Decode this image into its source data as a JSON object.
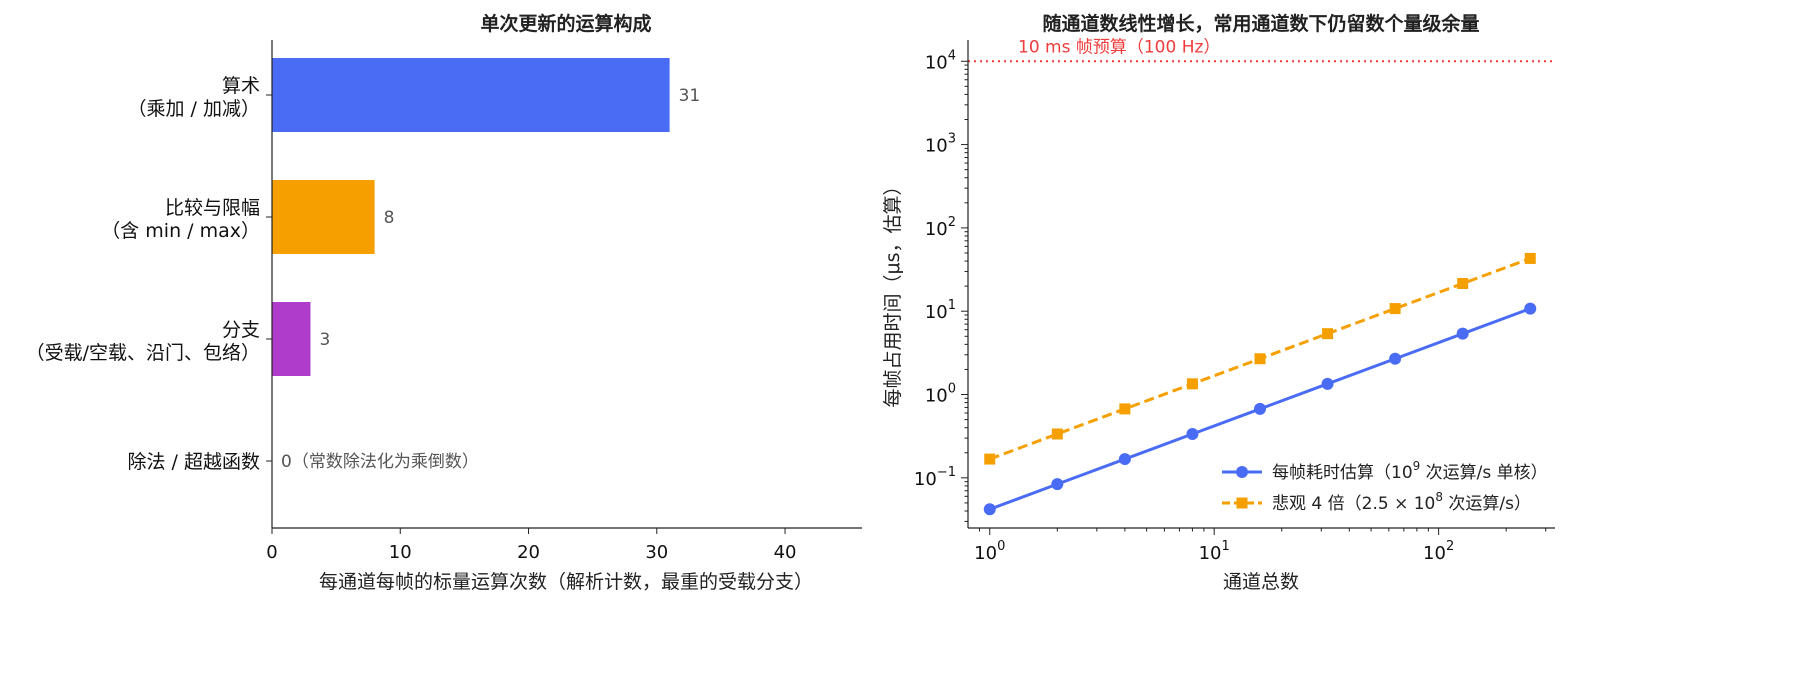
{
  "chart_data": [
    {
      "type": "bar",
      "orientation": "horizontal",
      "title": "单次更新的运算构成",
      "xlabel": "每通道每帧的标量运算次数（解析计数，最重的受载分支）",
      "ylabel": "",
      "xlim": [
        0,
        46
      ],
      "xticks": [
        0,
        10,
        20,
        30,
        40
      ],
      "grid": false,
      "categories": [
        {
          "line1": "算术",
          "line2": "（乘加 / 加减）"
        },
        {
          "line1": "比较与限幅",
          "line2": "（含 min / max）"
        },
        {
          "line1": "分支",
          "line2": "（受载/空载、沿门、包络）"
        },
        {
          "line1": "除法 / 超越函数",
          "line2": ""
        }
      ],
      "values": [
        31,
        8,
        3,
        0
      ],
      "value_labels": [
        "31",
        "8",
        "3",
        "0（常数除法化为乘倒数）"
      ],
      "colors": [
        "#4a6cf4",
        "#f5a000",
        "#b03ccc",
        "#888888"
      ]
    },
    {
      "type": "line",
      "title": "随通道数线性增长，常用通道数下仍留数个量级余量",
      "xlabel": "通道总数",
      "ylabel": "每帧占用时间（μs，估算）",
      "xscale": "log",
      "yscale": "log",
      "xlim": [
        0.8,
        330
      ],
      "ylim": [
        0.025,
        18000
      ],
      "xticks": [
        {
          "value": 1,
          "base": "10",
          "exp": "0"
        },
        {
          "value": 10,
          "base": "10",
          "exp": "1"
        },
        {
          "value": 100,
          "base": "10",
          "exp": "2"
        }
      ],
      "yticks": [
        {
          "value": 0.1,
          "base": "10",
          "exp": "−1"
        },
        {
          "value": 1,
          "base": "10",
          "exp": "0"
        },
        {
          "value": 10,
          "base": "10",
          "exp": "1"
        },
        {
          "value": 100,
          "base": "10",
          "exp": "2"
        },
        {
          "value": 1000,
          "base": "10",
          "exp": "3"
        },
        {
          "value": 10000,
          "base": "10",
          "exp": "4"
        }
      ],
      "grid": false,
      "legend_position": "lower-right",
      "x": [
        1,
        2,
        4,
        8,
        16,
        32,
        64,
        128,
        256
      ],
      "series": [
        {
          "name_parts": [
            "每帧耗时估算（10",
            "9",
            " 次运算/s 单核）"
          ],
          "values": [
            0.042,
            0.084,
            0.168,
            0.336,
            0.672,
            1.344,
            2.688,
            5.376,
            10.75
          ],
          "color": "#4a6cf4",
          "style": "solid",
          "marker": "circle"
        },
        {
          "name_parts": [
            "悲观 4 倍（2.5 × 10",
            "8",
            " 次运算/s）"
          ],
          "values": [
            0.168,
            0.336,
            0.672,
            1.344,
            2.688,
            5.376,
            10.75,
            21.5,
            43.0
          ],
          "color": "#f5a000",
          "style": "dashed",
          "marker": "square"
        }
      ],
      "reference_line": {
        "y": 10000,
        "label": "10 ms 帧预算（100 Hz）",
        "color": "#f03c3c",
        "style": "dotted"
      }
    }
  ]
}
